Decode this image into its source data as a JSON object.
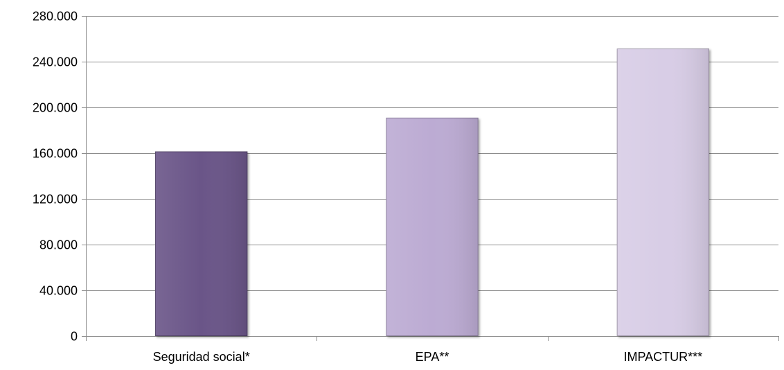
{
  "chart_data": {
    "type": "bar",
    "title": "",
    "xlabel": "",
    "ylabel": "",
    "categories": [
      "Seguridad social*",
      "EPA**",
      "IMPACTUR***"
    ],
    "values": [
      161500,
      191000,
      251500
    ],
    "ylim": [
      0,
      280000
    ],
    "yticks": [
      0,
      40000,
      80000,
      120000,
      160000,
      200000,
      240000,
      280000
    ],
    "ytick_labels": [
      "0",
      "40.000",
      "80.000",
      "120.000",
      "160.000",
      "200.000",
      "240.000",
      "280.000"
    ],
    "grid": true,
    "legend": "none",
    "bar_colors": [
      "#6a5488",
      "#bcabd3",
      "#d8cde6"
    ],
    "gridline_color": "#8c8c8c"
  }
}
